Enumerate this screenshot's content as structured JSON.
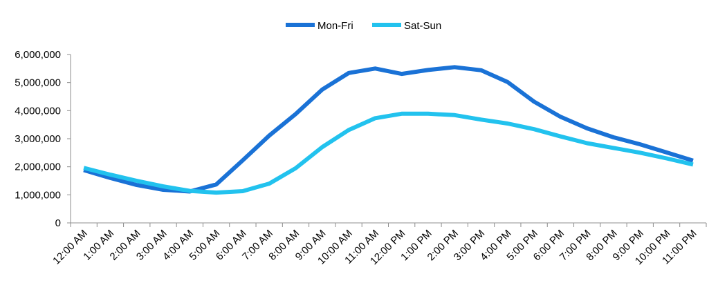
{
  "chart_data": {
    "type": "line",
    "categories": [
      "12:00 AM",
      "1:00 AM",
      "2:00 AM",
      "3:00 AM",
      "4:00 AM",
      "5:00 AM",
      "6:00 AM",
      "7:00 AM",
      "8:00 AM",
      "9:00 AM",
      "10:00 AM",
      "11:00 AM",
      "12:00 PM",
      "1:00 PM",
      "2:00 PM",
      "3:00 PM",
      "4:00 PM",
      "5:00 PM",
      "6:00 PM",
      "7:00 PM",
      "8:00 PM",
      "9:00 PM",
      "10:00 PM",
      "11:00 PM"
    ],
    "series": [
      {
        "name": "Mon-Fri",
        "color": "#1a72d6",
        "values": [
          1880000,
          1600000,
          1350000,
          1180000,
          1120000,
          1370000,
          2230000,
          3110000,
          3880000,
          4750000,
          5340000,
          5500000,
          5310000,
          5450000,
          5550000,
          5440000,
          5020000,
          4320000,
          3780000,
          3370000,
          3050000,
          2800000,
          2510000,
          2220000
        ]
      },
      {
        "name": "Sat-Sun",
        "color": "#22c2ee",
        "values": [
          1960000,
          1720000,
          1500000,
          1300000,
          1140000,
          1080000,
          1130000,
          1400000,
          1950000,
          2700000,
          3310000,
          3730000,
          3890000,
          3890000,
          3840000,
          3680000,
          3540000,
          3340000,
          3080000,
          2840000,
          2670000,
          2500000,
          2300000,
          2080000
        ]
      }
    ],
    "ylim": [
      0,
      6000000
    ],
    "yticks": [
      "0",
      "1,000,000",
      "2,000,000",
      "3,000,000",
      "4,000,000",
      "5,000,000",
      "6,000,000"
    ],
    "grid": false,
    "legend_position": "top-center",
    "title": "",
    "xlabel": "",
    "ylabel": ""
  }
}
